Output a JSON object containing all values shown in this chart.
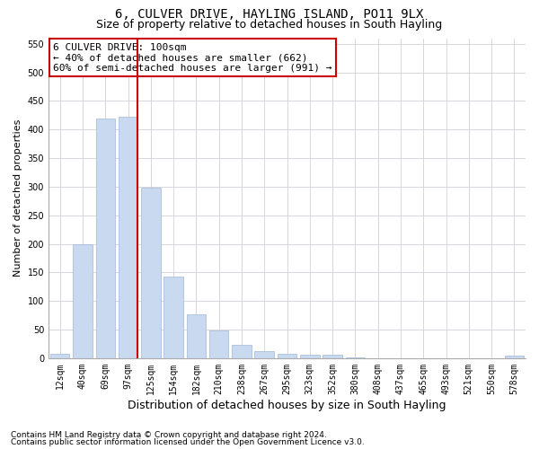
{
  "title": "6, CULVER DRIVE, HAYLING ISLAND, PO11 9LX",
  "subtitle": "Size of property relative to detached houses in South Hayling",
  "xlabel": "Distribution of detached houses by size in South Hayling",
  "ylabel": "Number of detached properties",
  "footnote1": "Contains HM Land Registry data © Crown copyright and database right 2024.",
  "footnote2": "Contains public sector information licensed under the Open Government Licence v3.0.",
  "categories": [
    "12sqm",
    "40sqm",
    "69sqm",
    "97sqm",
    "125sqm",
    "154sqm",
    "182sqm",
    "210sqm",
    "238sqm",
    "267sqm",
    "295sqm",
    "323sqm",
    "352sqm",
    "380sqm",
    "408sqm",
    "437sqm",
    "465sqm",
    "493sqm",
    "521sqm",
    "550sqm",
    "578sqm"
  ],
  "values": [
    8,
    200,
    420,
    422,
    298,
    142,
    77,
    48,
    24,
    12,
    8,
    6,
    6,
    2,
    0,
    0,
    0,
    0,
    0,
    0,
    4
  ],
  "bar_color": "#c9d9f0",
  "bar_edge_color": "#a0b8d8",
  "vline_index": 3,
  "vline_color": "#cc0000",
  "annotation_line1": "6 CULVER DRIVE: 100sqm",
  "annotation_line2": "← 40% of detached houses are smaller (662)",
  "annotation_line3": "60% of semi-detached houses are larger (991) →",
  "annotation_box_color": "#ffffff",
  "annotation_box_edge": "#cc0000",
  "ylim": [
    0,
    560
  ],
  "yticks": [
    0,
    50,
    100,
    150,
    200,
    250,
    300,
    350,
    400,
    450,
    500,
    550
  ],
  "bg_color": "#ffffff",
  "grid_color": "#d0d0d8",
  "title_fontsize": 10,
  "subtitle_fontsize": 9,
  "xlabel_fontsize": 9,
  "ylabel_fontsize": 8,
  "tick_fontsize": 7,
  "annotation_fontsize": 8,
  "footnote_fontsize": 6.5
}
